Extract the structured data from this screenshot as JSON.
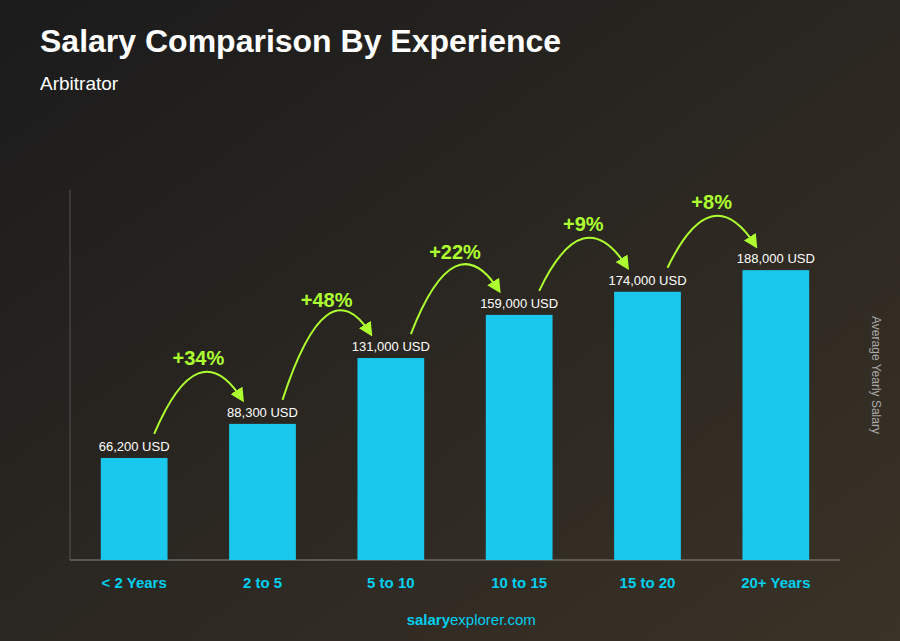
{
  "chart_data": {
    "type": "bar",
    "title": "Salary Comparison By Experience",
    "subtitle": "Arbitrator",
    "ylabel": "Average Yearly Salary",
    "footer": [
      "salary",
      "explorer.com"
    ],
    "categories": [
      "< 2 Years",
      "2 to 5",
      "5 to 10",
      "10 to 15",
      "15 to 20",
      "20+ Years"
    ],
    "values": [
      66200,
      88300,
      131000,
      159000,
      174000,
      188000
    ],
    "value_labels": [
      "66,200 USD",
      "88,300 USD",
      "131,000 USD",
      "159,000 USD",
      "174,000 USD",
      "188,000 USD"
    ],
    "data_labels": true,
    "annotations": [
      "+34%",
      "+48%",
      "+22%",
      "+9%",
      "+8%"
    ],
    "color": "#1AC8ED",
    "ylim": [
      0,
      240000
    ],
    "yticks": [],
    "tick_labels": "x",
    "grid": false
  }
}
